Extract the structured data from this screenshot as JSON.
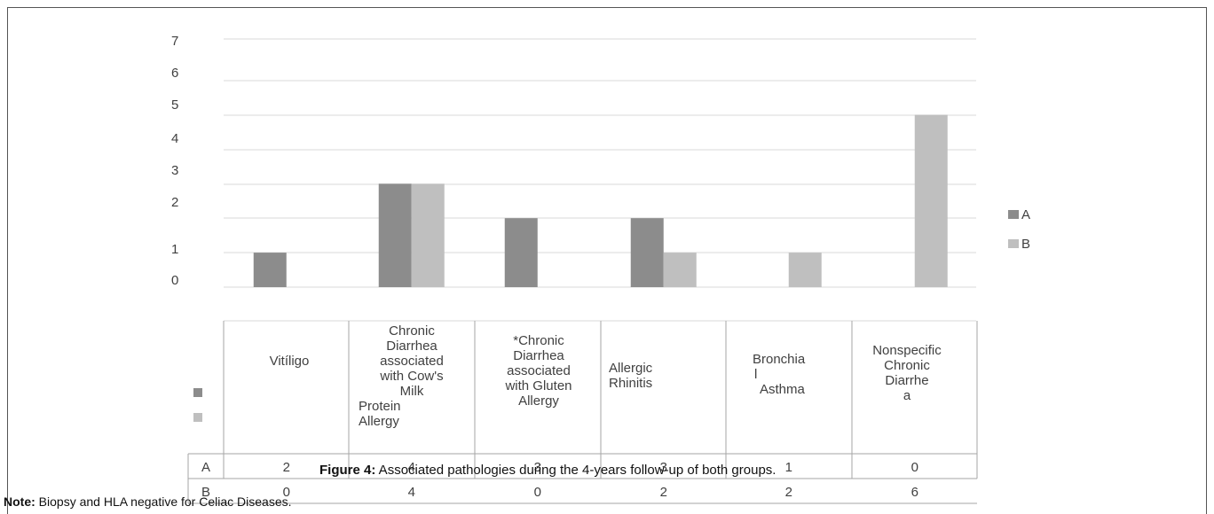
{
  "chart_data": {
    "type": "bar",
    "categories": [
      [
        "Vitíligo"
      ],
      [
        "Chronic",
        "Diarrhea",
        "associated",
        "with Cow's",
        "Milk",
        "Protein",
        "Allergy"
      ],
      [
        "*Chronic",
        "Diarrhea",
        "associated",
        "with Gluten",
        "Allergy"
      ],
      [
        "Allergic",
        "Rhinitis"
      ],
      [
        "Bronchia",
        "l",
        "Asthma"
      ],
      [
        "Nonspecific",
        "Chronic",
        "Diarrhe",
        "a"
      ]
    ],
    "series": [
      {
        "name": "A",
        "values": [
          2,
          4,
          3,
          3,
          1,
          0
        ],
        "color": "#8c8c8c"
      },
      {
        "name": "B",
        "values": [
          0,
          4,
          0,
          2,
          2,
          6
        ],
        "color": "#bfbfbf"
      }
    ],
    "ytick_labels": [
      "7",
      "6",
      "5",
      "4",
      "3",
      "2",
      "1",
      "0"
    ],
    "ylim": [
      0,
      7
    ],
    "legend_position": "right",
    "grid": true
  },
  "caption": {
    "prefix": "Figure 4:",
    "text": " Associated pathologies during the 4-years follow-up of both groups."
  },
  "note": {
    "prefix": "Note:",
    "text": " Biopsy and HLA negative for Celiac Diseases."
  }
}
